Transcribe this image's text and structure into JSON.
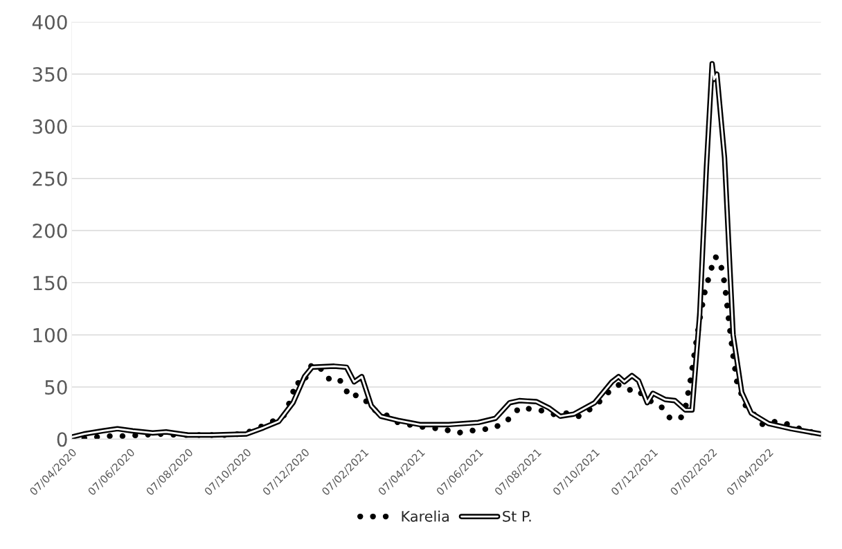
{
  "chart_data": {
    "type": "line",
    "xlim": [
      "2020-04-07",
      "2022-06-01"
    ],
    "xticks": [
      {
        "value": "2020-04-07",
        "label": "07/04/2020"
      },
      {
        "value": "2020-06-07",
        "label": "07/06/2020"
      },
      {
        "value": "2020-08-07",
        "label": "07/08/2020"
      },
      {
        "value": "2020-10-07",
        "label": "07/10/2020"
      },
      {
        "value": "2020-12-07",
        "label": "07/12/2020"
      },
      {
        "value": "2021-02-07",
        "label": "07/02/2021"
      },
      {
        "value": "2021-04-07",
        "label": "07/04/2021"
      },
      {
        "value": "2021-06-07",
        "label": "07/06/2021"
      },
      {
        "value": "2021-08-07",
        "label": "07/08/2021"
      },
      {
        "value": "2021-10-07",
        "label": "07/10/2021"
      },
      {
        "value": "2021-12-07",
        "label": "07/12/2021"
      },
      {
        "value": "2022-02-07",
        "label": "07/02/2022"
      },
      {
        "value": "2022-04-07",
        "label": "07/04/2022"
      }
    ],
    "ylim": [
      0,
      400
    ],
    "yticks": [
      0,
      50,
      100,
      150,
      200,
      250,
      300,
      350,
      400
    ],
    "grid": "y",
    "legend": "bottom",
    "marker": "none",
    "series": [
      {
        "name": "Karelia",
        "color": "#000000",
        "line_style": "dotted",
        "x": [
          "2020-04-07",
          "2020-04-20",
          "2020-05-01",
          "2020-05-15",
          "2020-06-01",
          "2020-06-20",
          "2020-07-07",
          "2020-08-01",
          "2020-09-01",
          "2020-09-20",
          "2020-10-07",
          "2020-10-20",
          "2020-11-01",
          "2020-11-15",
          "2020-11-20",
          "2020-11-25",
          "2020-11-28",
          "2020-12-05",
          "2020-12-10",
          "2020-12-15",
          "2020-12-22",
          "2021-01-01",
          "2021-01-10",
          "2021-01-18",
          "2021-01-22",
          "2021-01-28",
          "2021-02-03",
          "2021-02-10",
          "2021-02-18",
          "2021-03-01",
          "2021-03-15",
          "2021-04-01",
          "2021-04-15",
          "2021-05-01",
          "2021-05-15",
          "2021-05-25",
          "2021-06-05",
          "2021-06-20",
          "2021-07-01",
          "2021-07-10",
          "2021-07-20",
          "2021-08-01",
          "2021-08-15",
          "2021-08-25",
          "2021-09-07",
          "2021-09-20",
          "2021-10-01",
          "2021-10-10",
          "2021-10-20",
          "2021-11-01",
          "2021-11-10",
          "2021-11-20",
          "2021-12-01",
          "2021-12-15",
          "2021-12-25",
          "2022-01-05",
          "2022-01-10",
          "2022-01-15",
          "2022-01-20",
          "2022-01-25",
          "2022-01-30",
          "2022-02-05",
          "2022-02-10",
          "2022-02-15",
          "2022-02-20",
          "2022-02-25",
          "2022-03-01",
          "2022-03-05",
          "2022-03-15",
          "2022-03-25",
          "2022-04-01",
          "2022-04-15",
          "2022-04-25",
          "2022-05-10",
          "2022-05-25"
        ],
        "values": [
          1,
          1,
          2,
          3,
          3,
          4,
          5,
          4,
          4,
          4,
          6,
          11,
          16,
          22,
          32,
          45,
          55,
          52,
          63,
          72,
          70,
          58,
          59,
          52,
          41,
          42,
          42,
          36,
          28,
          24,
          16,
          13,
          11,
          10,
          6,
          7,
          9,
          10,
          14,
          20,
          30,
          29,
          27,
          24,
          25,
          22,
          28,
          34,
          44,
          52,
          47,
          48,
          38,
          32,
          20,
          20,
          30,
          55,
          85,
          115,
          140,
          160,
          175,
          172,
          150,
          110,
          80,
          55,
          30,
          22,
          14,
          17,
          15,
          10,
          6
        ]
      },
      {
        "name": "St P.",
        "color": "#000000",
        "line_style": "solid",
        "x": [
          "2020-04-07",
          "2020-04-20",
          "2020-05-10",
          "2020-05-25",
          "2020-06-10",
          "2020-07-01",
          "2020-07-15",
          "2020-08-07",
          "2020-09-01",
          "2020-10-07",
          "2020-10-25",
          "2020-11-10",
          "2020-11-25",
          "2020-12-07",
          "2020-12-15",
          "2021-01-07",
          "2021-01-20",
          "2021-01-28",
          "2021-02-05",
          "2021-02-15",
          "2021-02-25",
          "2021-03-15",
          "2021-04-07",
          "2021-05-07",
          "2021-06-07",
          "2021-06-25",
          "2021-07-10",
          "2021-07-20",
          "2021-08-07",
          "2021-08-20",
          "2021-09-01",
          "2021-09-15",
          "2021-10-07",
          "2021-10-25",
          "2021-11-01",
          "2021-11-07",
          "2021-11-15",
          "2021-11-22",
          "2021-12-01",
          "2021-12-07",
          "2021-12-20",
          "2021-12-30",
          "2022-01-10",
          "2022-01-17",
          "2022-01-25",
          "2022-02-01",
          "2022-02-07",
          "2022-02-09",
          "2022-02-12",
          "2022-02-20",
          "2022-03-01",
          "2022-03-10",
          "2022-03-20",
          "2022-04-07",
          "2022-05-01",
          "2022-06-01"
        ],
        "values": [
          2,
          5,
          8,
          10,
          8,
          6,
          7,
          4,
          4,
          5,
          11,
          17,
          35,
          60,
          69,
          70,
          69,
          55,
          60,
          32,
          22,
          18,
          14,
          14,
          16,
          20,
          35,
          37,
          36,
          30,
          22,
          24,
          35,
          55,
          60,
          55,
          61,
          56,
          35,
          44,
          38,
          37,
          28,
          28,
          120,
          260,
          360,
          345,
          350,
          270,
          100,
          45,
          25,
          15,
          10,
          5
        ]
      }
    ]
  }
}
